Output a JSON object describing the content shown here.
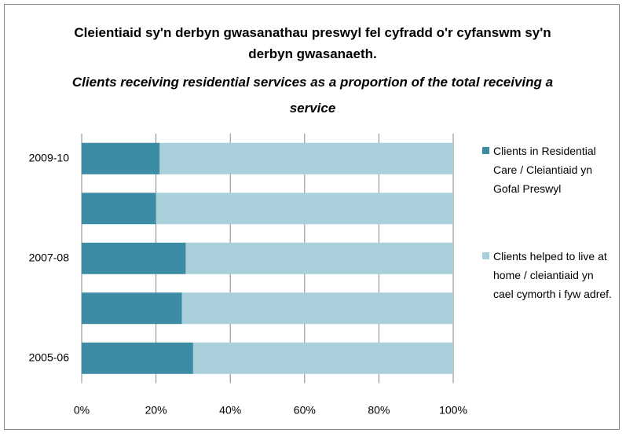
{
  "chart_data": {
    "type": "stacked-barh",
    "title": "Cleientiaid sy'n derbyn gwasanathau preswyl fel cyfradd o'r cyfanswm sy'n derbyn gwasanaeth.",
    "subtitle": "Clients receiving residential services as a proportion of the total receiving a service",
    "categories": [
      "2009-10",
      null,
      "2007-08",
      null,
      "2005-06"
    ],
    "series": [
      {
        "name": "Clients in Residential Care / Cleiantiaid yn Gofal Preswyl",
        "color": "#3d8ca5",
        "values": [
          21,
          20,
          28,
          27,
          30
        ]
      },
      {
        "name": "Clients helped to live at home / cleiantiaid yn cael cymorth i fyw adref.",
        "color": "#a9cfdb",
        "values": [
          79,
          80,
          72,
          73,
          70
        ]
      }
    ],
    "xlim": [
      0,
      100
    ],
    "xticks": [
      {
        "value": 0,
        "label": "0%"
      },
      {
        "value": 20,
        "label": "20%"
      },
      {
        "value": 40,
        "label": "40%"
      },
      {
        "value": 60,
        "label": "60%"
      },
      {
        "value": 80,
        "label": "80%"
      },
      {
        "value": 100,
        "label": "100%"
      }
    ],
    "grid": true,
    "legend": "right"
  }
}
